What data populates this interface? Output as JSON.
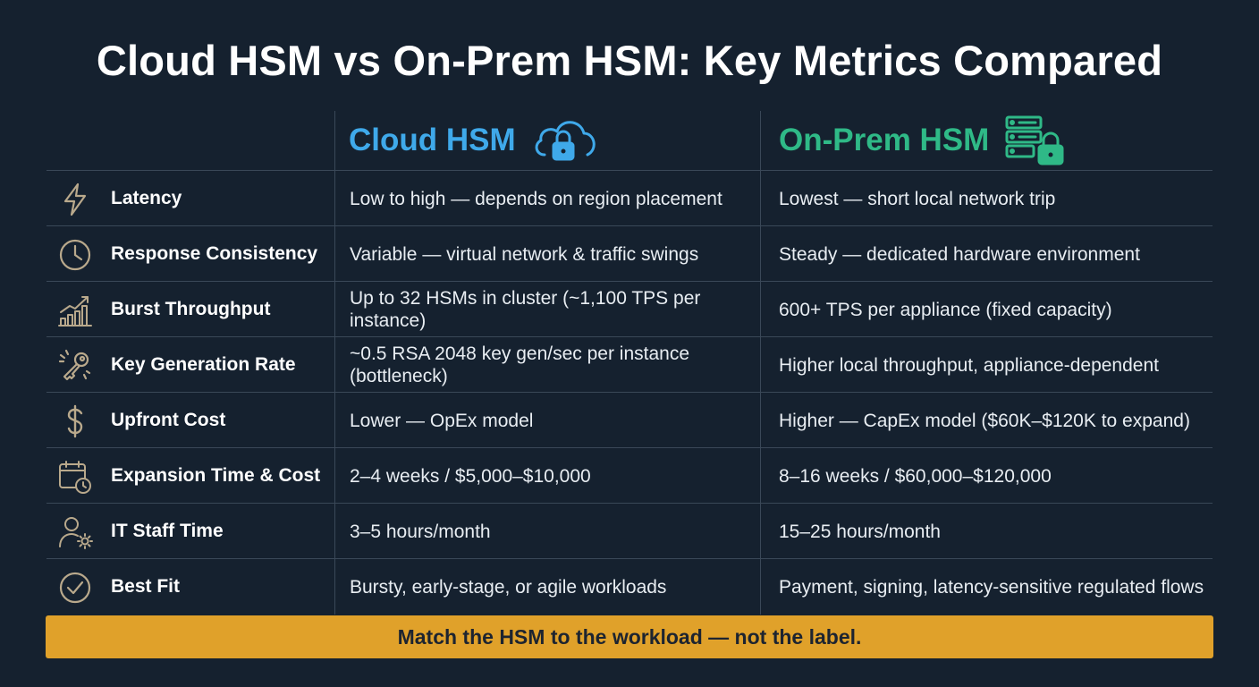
{
  "title": "Cloud HSM vs On-Prem HSM: Key Metrics Compared",
  "columns": {
    "cloud": {
      "label": "Cloud HSM",
      "icon": "cloud-lock-icon",
      "color": "#3fa9ea"
    },
    "onprem": {
      "label": "On-Prem HSM",
      "icon": "server-lock-icon",
      "color": "#2fb987"
    }
  },
  "rows": [
    {
      "icon": "lightning-icon",
      "label": "Latency",
      "cloud": "Low to high — depends on region placement",
      "onprem": "Lowest — short local network trip"
    },
    {
      "icon": "clock-icon",
      "label": "Response Consistency",
      "cloud": "Variable — virtual network & traffic swings",
      "onprem": "Steady — dedicated hardware environment"
    },
    {
      "icon": "bar-chart-trend-icon",
      "label": "Burst Throughput",
      "cloud": "Up to 32 HSMs in cluster (~1,100 TPS per instance)",
      "onprem": "600+ TPS per appliance (fixed capacity)"
    },
    {
      "icon": "key-icon",
      "label": "Key Generation Rate",
      "cloud": "~0.5 RSA 2048 key gen/sec per instance (bottleneck)",
      "onprem": "Higher local throughput, appliance-dependent"
    },
    {
      "icon": "dollar-icon",
      "label": "Upfront Cost",
      "cloud": "Lower — OpEx model",
      "onprem": "Higher — CapEx model ($60K–$120K to expand)"
    },
    {
      "icon": "calendar-clock-icon",
      "label": "Expansion Time & Cost",
      "cloud": "2–4 weeks / $5,000–$10,000",
      "onprem": "8–16 weeks / $60,000–$120,000"
    },
    {
      "icon": "user-gear-icon",
      "label": "IT Staff Time",
      "cloud": "3–5 hours/month",
      "onprem": "15–25 hours/month"
    },
    {
      "icon": "check-circle-icon",
      "label": "Best Fit",
      "cloud": "Bursty, early-stage, or agile workloads",
      "onprem": "Payment, signing, latency-sensitive regulated flows"
    }
  ],
  "banner": "Match the HSM to the workload — not the label.",
  "colors": {
    "background": "#15212f",
    "banner": "#e0a12a",
    "icon": "#b9a98c"
  }
}
